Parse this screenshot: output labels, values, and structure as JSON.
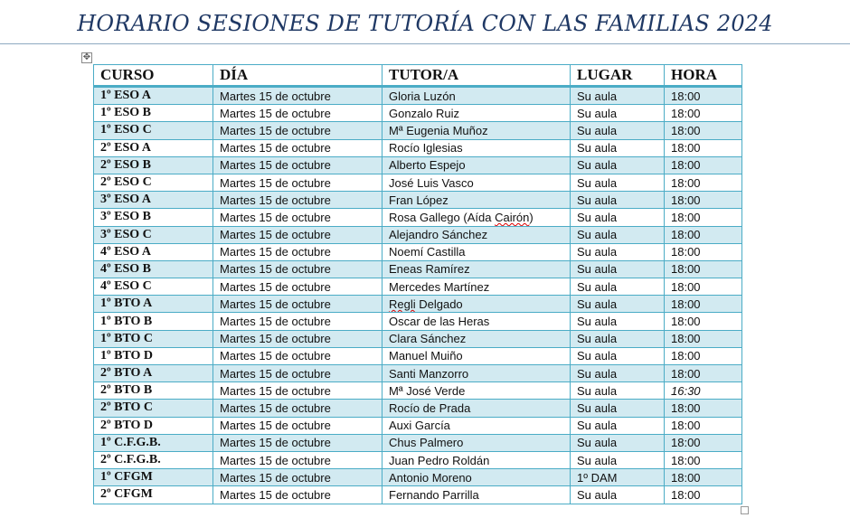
{
  "title": "HORARIO SESIONES DE TUTORÍA CON LAS FAMILIAS 2024",
  "table": {
    "headers": [
      "CURSO",
      "DÍA",
      "TUTOR/A",
      "LUGAR",
      "HORA"
    ],
    "rows": [
      [
        "1º ESO A",
        "Martes 15 de octubre",
        "Gloria Luzón",
        "Su aula",
        "18:00"
      ],
      [
        "1º ESO B",
        "Martes 15 de octubre",
        "Gonzalo Ruiz",
        "Su aula",
        "18:00"
      ],
      [
        "1º ESO C",
        "Martes 15 de octubre",
        "Mª Eugenia Muñoz",
        "Su aula",
        "18:00"
      ],
      [
        "2º ESO A",
        "Martes 15 de octubre",
        "Rocío Iglesias",
        "Su aula",
        "18:00"
      ],
      [
        "2º ESO B",
        "Martes 15 de octubre",
        "Alberto Espejo",
        "Su aula",
        "18:00"
      ],
      [
        "2º ESO C",
        "Martes 15 de octubre",
        "José Luis Vasco",
        "Su aula",
        "18:00"
      ],
      [
        "3º ESO A",
        "Martes 15 de octubre",
        "Fran López",
        "Su aula",
        "18:00"
      ],
      [
        "3º ESO B",
        "Martes 15 de octubre",
        "Rosa Gallego (Aída Cairón)",
        "Su aula",
        "18:00"
      ],
      [
        "3º ESO C",
        "Martes 15 de octubre",
        "Alejandro Sánchez",
        "Su aula",
        "18:00"
      ],
      [
        "4º ESO A",
        "Martes 15 de octubre",
        "Noemí Castilla",
        "Su aula",
        "18:00"
      ],
      [
        "4º ESO B",
        "Martes 15 de octubre",
        "Eneas Ramírez",
        "Su aula",
        "18:00"
      ],
      [
        "4º ESO C",
        "Martes 15 de octubre",
        "Mercedes Martínez",
        "Su aula",
        "18:00"
      ],
      [
        "1º BTO A",
        "Martes 15 de octubre",
        "Regli Delgado",
        "Su aula",
        "18:00"
      ],
      [
        "1º BTO B",
        "Martes 15 de octubre",
        "Oscar de las Heras",
        "Su aula",
        "18:00"
      ],
      [
        "1º BTO C",
        "Martes 15 de octubre",
        "Clara Sánchez",
        "Su aula",
        "18:00"
      ],
      [
        "1º BTO D",
        "Martes 15 de octubre",
        "Manuel Muiño",
        "Su aula",
        "18:00"
      ],
      [
        "2º BTO A",
        "Martes 15 de octubre",
        "Santi Manzorro",
        "Su aula",
        "18:00"
      ],
      [
        "2º BTO B",
        "Martes 15 de octubre",
        "Mª José Verde",
        "Su aula",
        "16:30"
      ],
      [
        "2º BTO C",
        "Martes 15 de octubre",
        "Rocío de Prada",
        "Su aula",
        "18:00"
      ],
      [
        "2º BTO D",
        "Martes 15 de octubre",
        "Auxi García",
        "Su aula",
        "18:00"
      ],
      [
        "1º C.F.G.B.",
        "Martes 15 de octubre",
        "Chus Palmero",
        "Su aula",
        "18:00"
      ],
      [
        "2º C.F.G.B.",
        "Martes 15 de octubre",
        "Juan Pedro Roldán",
        "Su aula",
        "18:00"
      ],
      [
        "1º CFGM",
        "Martes 15 de octubre",
        "Antonio Moreno",
        "1º DAM",
        "18:00"
      ],
      [
        "2º CFGM",
        "Martes 15 de octubre",
        "Fernando Parrilla",
        "Su aula",
        "18:00"
      ]
    ]
  },
  "colors": {
    "title": "#1f3864",
    "border": "#4bacc6",
    "band": "#d2eaf1"
  },
  "icons": {
    "table_handle": "move-icon",
    "resize_handle": "resize-icon"
  }
}
